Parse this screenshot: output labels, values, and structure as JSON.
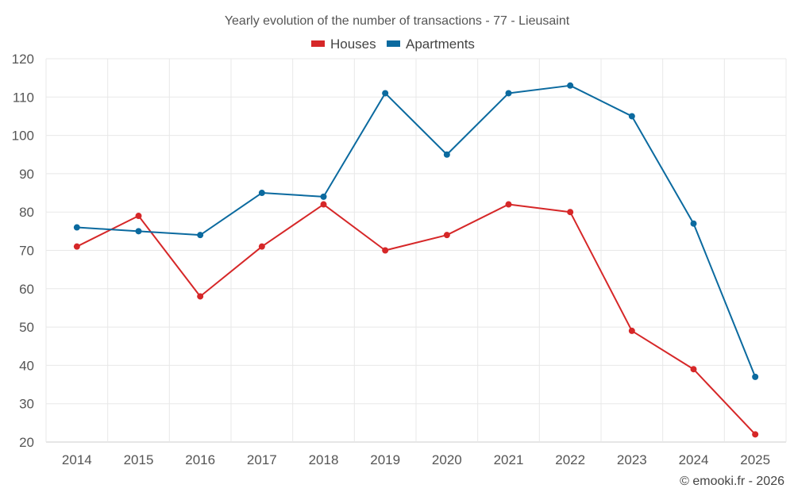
{
  "chart_data": {
    "type": "line",
    "title": "Yearly evolution of the number of transactions - 77 - Lieusaint",
    "xlabel": "",
    "ylabel": "",
    "categories": [
      "2014",
      "2015",
      "2016",
      "2017",
      "2018",
      "2019",
      "2020",
      "2021",
      "2022",
      "2023",
      "2024",
      "2025"
    ],
    "ylim": [
      20,
      120
    ],
    "yticks": [
      20,
      30,
      40,
      50,
      60,
      70,
      80,
      90,
      100,
      110,
      120
    ],
    "grid": true,
    "legend_position": "top-center",
    "series": [
      {
        "name": "Houses",
        "color": "#d62728",
        "values": [
          71,
          79,
          58,
          71,
          82,
          70,
          74,
          82,
          80,
          49,
          39,
          22
        ]
      },
      {
        "name": "Apartments",
        "color": "#0b6a9f",
        "values": [
          76,
          75,
          74,
          85,
          84,
          111,
          95,
          111,
          113,
          105,
          77,
          37
        ]
      }
    ]
  },
  "credit": "© emooki.fr - 2026"
}
